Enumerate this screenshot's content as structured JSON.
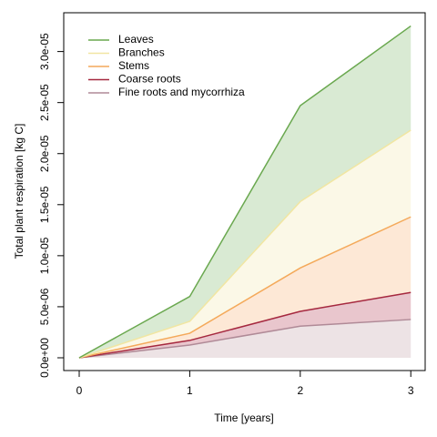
{
  "chart_data": {
    "type": "stacked_area",
    "xlabel": "Time [years]",
    "ylabel": "Total plant respiration [kg C]",
    "x": [
      0,
      1,
      2,
      3
    ],
    "xlim": [
      -0.14,
      3.13
    ],
    "xticks": [
      0,
      1,
      2,
      3
    ],
    "ylim": [
      -1.25e-06,
      3.38e-05
    ],
    "yticks": [
      {
        "value": 0,
        "label": "0.0e+00"
      },
      {
        "value": 5e-06,
        "label": "5.0e-06"
      },
      {
        "value": 1e-05,
        "label": "1.0e-05"
      },
      {
        "value": 1.5e-05,
        "label": "1.5e-05"
      },
      {
        "value": 2e-05,
        "label": "2.0e-05"
      },
      {
        "value": 2.5e-05,
        "label": "2.5e-05"
      },
      {
        "value": 3e-05,
        "label": "3.0e-05"
      }
    ],
    "legend": "top-left",
    "series": [
      {
        "name": "Leaves",
        "color": "#6aa84f",
        "fill": "#d9ead3",
        "values": [
          0,
          2.43e-06,
          9.4e-06,
          1.02e-05
        ]
      },
      {
        "name": "Branches",
        "color": "#f1e6a2",
        "fill": "#fbf8e7",
        "values": [
          0,
          1.17e-06,
          6.5e-06,
          8.5e-06
        ]
      },
      {
        "name": "Stems",
        "color": "#f4a95a",
        "fill": "#fde8d6",
        "values": [
          0,
          7e-07,
          4.25e-06,
          7.4e-06
        ]
      },
      {
        "name": "Coarse roots",
        "color": "#a5283f",
        "fill": "#e9c6cd",
        "values": [
          0,
          4.5e-07,
          1.45e-06,
          2.65e-06
        ]
      },
      {
        "name": "Fine roots and mycorrhiza",
        "color": "#b08a97",
        "fill": "#ede3e5",
        "values": [
          0,
          1.25e-06,
          3.1e-06,
          3.75e-06
        ]
      }
    ]
  }
}
